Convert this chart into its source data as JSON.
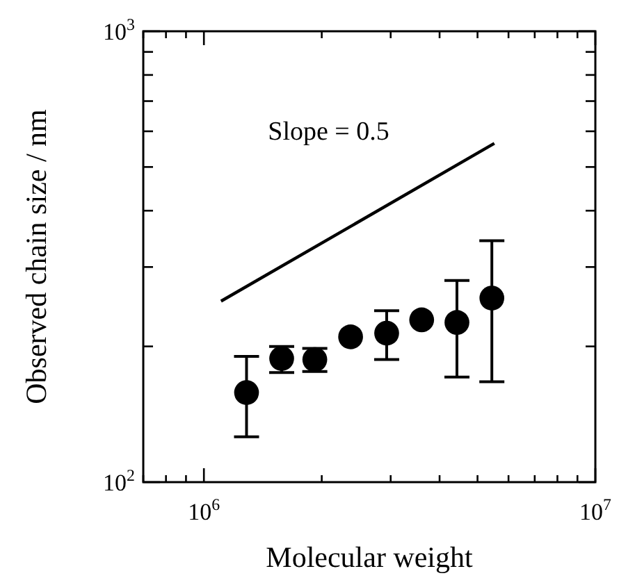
{
  "chart_data": {
    "type": "scatter",
    "xlabel": "Molecular weight",
    "ylabel": "Observed chain size / nm",
    "log": "xy",
    "grid": false,
    "marker": "circle",
    "xlim": [
      700000,
      10000000
    ],
    "ylim": [
      100,
      1000
    ],
    "xticks": [
      {
        "value": 700000,
        "label": null
      },
      {
        "value": 800000,
        "label": null
      },
      {
        "value": 900000,
        "label": null
      },
      {
        "value": 1000000,
        "label": "10$^{6}$"
      },
      {
        "value": 2000000,
        "label": null
      },
      {
        "value": 3000000,
        "label": null
      },
      {
        "value": 4000000,
        "label": null
      },
      {
        "value": 5000000,
        "label": null
      },
      {
        "value": 6000000,
        "label": null
      },
      {
        "value": 7000000,
        "label": null
      },
      {
        "value": 8000000,
        "label": null
      },
      {
        "value": 9000000,
        "label": null
      },
      {
        "value": 10000000,
        "label": "10$^{7}$"
      }
    ],
    "yticks": [
      {
        "value": 100,
        "label": "10$^{2}$"
      },
      {
        "value": 200,
        "label": null
      },
      {
        "value": 300,
        "label": null
      },
      {
        "value": 400,
        "label": null
      },
      {
        "value": 500,
        "label": null
      },
      {
        "value": 600,
        "label": null
      },
      {
        "value": 700,
        "label": null
      },
      {
        "value": 800,
        "label": null
      },
      {
        "value": 900,
        "label": null
      },
      {
        "value": 1000,
        "label": "10$^{3}$"
      }
    ],
    "series": [
      {
        "color": "#000000",
        "x": [
          1285000,
          1580000,
          1920000,
          2370000,
          2930000,
          3600000,
          4430000,
          5440000
        ],
        "values": [
          158,
          188,
          187,
          210,
          214,
          229,
          226,
          256
        ],
        "errors": [
          [
            126,
            190
          ],
          [
            175,
            200
          ],
          [
            176,
            198
          ],
          null,
          [
            187,
            240
          ],
          null,
          [
            171,
            280
          ],
          [
            167,
            343
          ]
        ]
      },
      {
        "type": "line",
        "color": "#000000",
        "line_style": "solid",
        "marker": "none",
        "x": [
          1106000,
          5520000
        ],
        "values": [
          252,
          564
        ]
      }
    ],
    "annotations": [
      "Slope = 0.5"
    ]
  }
}
